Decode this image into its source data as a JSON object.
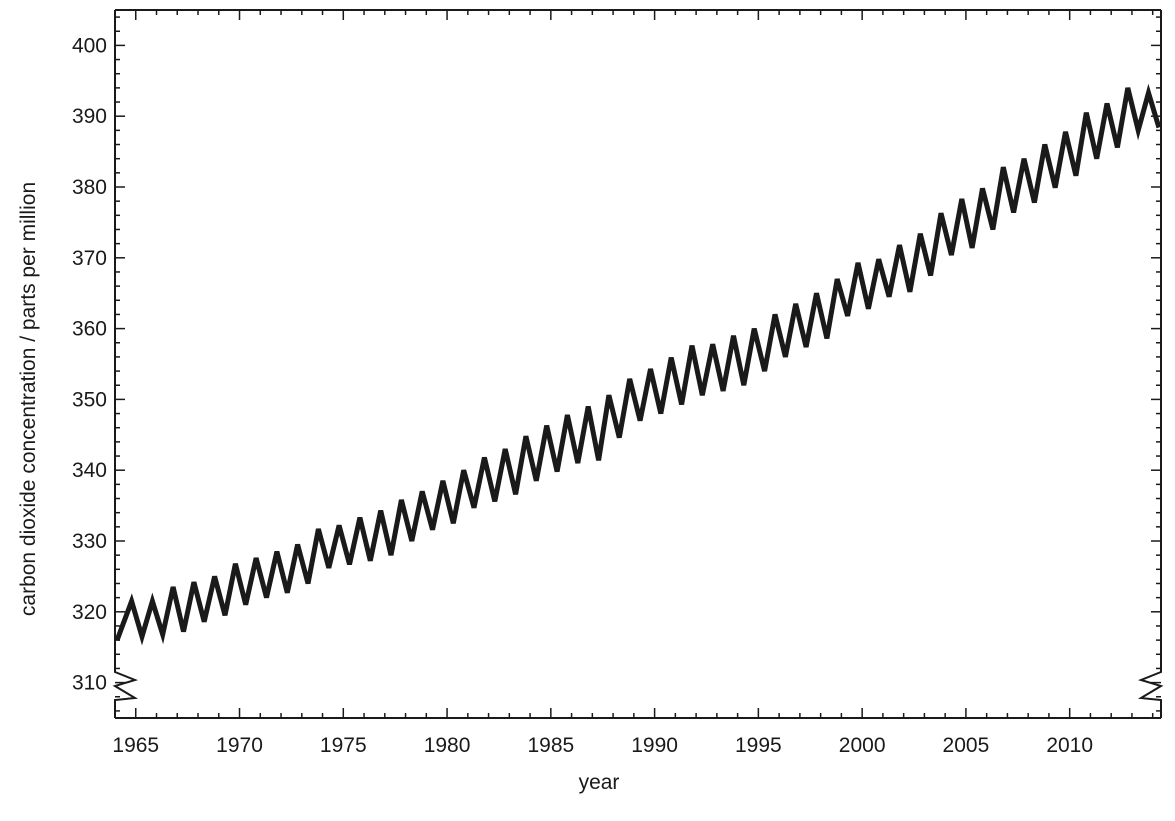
{
  "chart_data": {
    "type": "line",
    "title": "",
    "xlabel": "year",
    "ylabel": "carbon dioxide concentration / parts per million",
    "xlim": [
      1964.0,
      2014.4
    ],
    "ylim": [
      305,
      405
    ],
    "y_axis_break": true,
    "grid": false,
    "legend": "none",
    "line_color": "#1a1a1a",
    "x_ticks": [
      1965,
      1970,
      1975,
      1980,
      1985,
      1990,
      1995,
      2000,
      2005,
      2010
    ],
    "x_tick_labels": [
      "1965",
      "1970",
      "1975",
      "1980",
      "1985",
      "1990",
      "1995",
      "2000",
      "2005",
      "2010"
    ],
    "y_ticks": [
      310,
      320,
      330,
      340,
      350,
      360,
      370,
      380,
      390,
      400
    ],
    "y_tick_labels": [
      "310",
      "320",
      "330",
      "340",
      "350",
      "360",
      "370",
      "380",
      "390",
      "400"
    ],
    "series": [
      {
        "x": [
          1964.1,
          1964.8,
          1965.3,
          1965.8,
          1966.3,
          1966.8,
          1967.3,
          1967.8,
          1968.3,
          1968.8,
          1969.3,
          1969.8,
          1970.3,
          1970.8,
          1971.3,
          1971.8,
          1972.3,
          1972.8,
          1973.3,
          1973.8,
          1974.3,
          1974.8,
          1975.3,
          1975.8,
          1976.3,
          1976.8,
          1977.3,
          1977.8,
          1978.3,
          1978.8,
          1979.3,
          1979.8,
          1980.3,
          1980.8,
          1981.3,
          1981.8,
          1982.3,
          1982.8,
          1983.3,
          1983.8,
          1984.3,
          1984.8,
          1985.3,
          1985.8,
          1986.3,
          1986.8,
          1987.3,
          1987.8,
          1988.3,
          1988.8,
          1989.3,
          1989.8,
          1990.3,
          1990.8,
          1991.3,
          1991.8,
          1992.3,
          1992.8,
          1993.3,
          1993.8,
          1994.3,
          1994.8,
          1995.3,
          1995.8,
          1996.3,
          1996.8,
          1997.3,
          1997.8,
          1998.3,
          1998.8,
          1999.3,
          1999.8,
          2000.3,
          2000.8,
          2001.3,
          2001.8,
          2002.3,
          2002.8,
          2003.3,
          2003.8,
          2004.3,
          2004.8,
          2005.3,
          2005.8,
          2006.3,
          2006.8,
          2007.3,
          2007.8,
          2008.3,
          2008.8,
          2009.3,
          2009.8,
          2010.3,
          2010.8,
          2011.3,
          2011.8,
          2012.3,
          2012.8,
          2013.3,
          2013.8,
          2014.3
        ],
        "y": [
          316.0,
          321.5,
          316.5,
          321.5,
          316.8,
          323.5,
          317.2,
          324.2,
          318.6,
          325.0,
          319.5,
          326.8,
          321.0,
          327.6,
          322.0,
          328.5,
          322.7,
          329.5,
          324.0,
          331.7,
          326.2,
          332.2,
          326.7,
          333.3,
          327.2,
          334.3,
          328.0,
          335.8,
          330.0,
          337.0,
          331.6,
          338.5,
          332.5,
          340.0,
          334.7,
          341.8,
          335.6,
          343.0,
          336.6,
          344.8,
          338.5,
          346.3,
          339.8,
          347.8,
          341.0,
          349.0,
          341.4,
          350.6,
          344.6,
          352.9,
          347.0,
          354.3,
          348.0,
          355.9,
          349.3,
          357.6,
          350.6,
          357.8,
          351.2,
          359.0,
          352.0,
          360.0,
          354.0,
          362.0,
          356.0,
          363.5,
          357.4,
          365.0,
          358.6,
          367.0,
          361.8,
          369.3,
          362.8,
          369.8,
          364.5,
          371.8,
          365.2,
          373.4,
          367.5,
          376.3,
          370.4,
          378.3,
          371.4,
          379.8,
          374.0,
          382.8,
          376.4,
          384.0,
          377.8,
          386.0,
          379.9,
          387.8,
          381.6,
          390.5,
          384.0,
          391.8,
          385.6,
          394.0,
          388.0,
          393.3,
          388.4
        ]
      }
    ]
  }
}
